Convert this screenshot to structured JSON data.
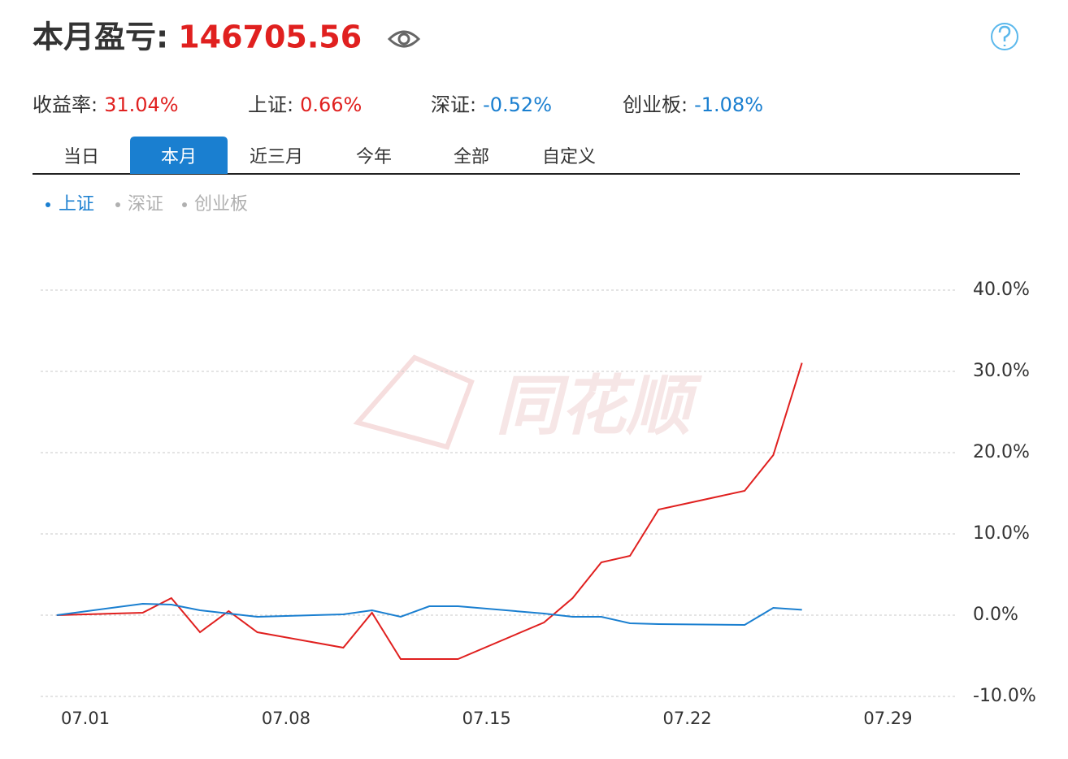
{
  "header": {
    "title": "本月盈亏:",
    "value": "146705.56",
    "value_color": "#e0201f"
  },
  "stats": [
    {
      "label": "收益率:",
      "value": "31.04%",
      "color": "#e0201f"
    },
    {
      "label": "上证:",
      "value": "0.66%",
      "color": "#e0201f"
    },
    {
      "label": "深证:",
      "value": "-0.52%",
      "color": "#1a7fd0"
    },
    {
      "label": "创业板:",
      "value": "-1.08%",
      "color": "#1a7fd0"
    }
  ],
  "tabs": [
    "当日",
    "本月",
    "近三月",
    "今年",
    "全部",
    "自定义"
  ],
  "active_tab": 1,
  "chart_data": {
    "type": "line",
    "watermark": "同花顺",
    "x": [
      0,
      3,
      4,
      5,
      6,
      7,
      10,
      11,
      12,
      13,
      14,
      17,
      18,
      19,
      20,
      21,
      24,
      25,
      26
    ],
    "xlim": [
      -0.56,
      31.34
    ],
    "xticks": [
      {
        "value": 1,
        "label": "07.01"
      },
      {
        "value": 8,
        "label": "07.08"
      },
      {
        "value": 15,
        "label": "07.15"
      },
      {
        "value": 22,
        "label": "07.22"
      },
      {
        "value": 29,
        "label": "07.29"
      }
    ],
    "ylim": [
      -10,
      40
    ],
    "yticks": [
      {
        "value": 40,
        "label": "40.0%"
      },
      {
        "value": 30,
        "label": "30.0%"
      },
      {
        "value": 20,
        "label": "20.0%"
      },
      {
        "value": 10,
        "label": "10.0%"
      },
      {
        "value": 0,
        "label": "0.0%"
      },
      {
        "value": -10,
        "label": "-10.0%"
      }
    ],
    "grid": true,
    "series": [
      {
        "color": "#e0201f",
        "values": [
          0,
          0.3,
          2.1,
          -2.1,
          0.5,
          -2.1,
          -4.0,
          0.3,
          -5.4,
          -5.4,
          -5.4,
          -0.9,
          2.1,
          6.5,
          7.3,
          13.0,
          15.3,
          19.7,
          31.04
        ]
      },
      {
        "name": "上证",
        "color": "#1a7fd0",
        "values": [
          0,
          1.4,
          1.3,
          0.6,
          0.2,
          -0.2,
          0.1,
          0.6,
          -0.2,
          1.1,
          1.1,
          0.2,
          -0.2,
          -0.2,
          -1.0,
          -1.1,
          -1.2,
          0.9,
          0.66
        ]
      }
    ],
    "inactive_legend": [
      "深证",
      "创业板"
    ],
    "inactive_color": "#b0b0b0"
  }
}
